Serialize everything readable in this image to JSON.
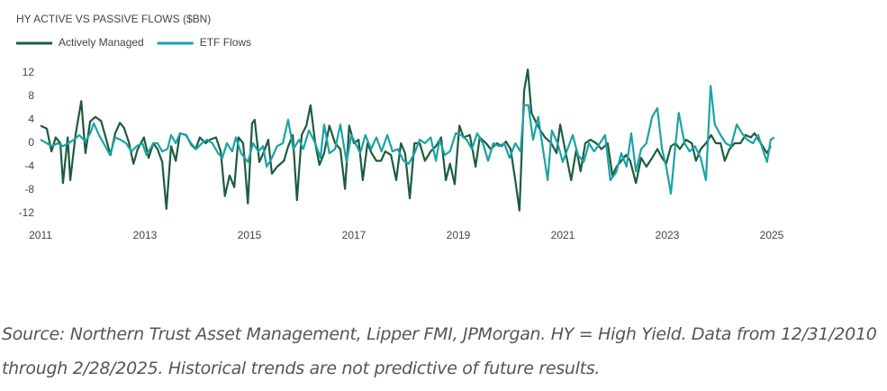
{
  "chart_data": {
    "type": "line",
    "title": "HY ACTIVE VS PASSIVE FLOWS ($BN)",
    "legend": "top-left",
    "grid": false,
    "xlim": [
      2011,
      2025.1
    ],
    "xticks": [
      2011,
      2013,
      2015,
      2017,
      2019,
      2021,
      2023,
      2025
    ],
    "ylim": [
      -13,
      13
    ],
    "yticks": [
      -12,
      -8,
      -4,
      0,
      4,
      8,
      12
    ],
    "series": [
      {
        "name": "Actively Managed",
        "color": "#1d5c3e",
        "x": [
          2011.0,
          2011.12,
          2011.21,
          2011.29,
          2011.38,
          2011.43,
          2011.52,
          2011.57,
          2011.67,
          2011.78,
          2011.86,
          2011.95,
          2012.05,
          2012.16,
          2012.26,
          2012.34,
          2012.43,
          2012.52,
          2012.6,
          2012.69,
          2012.78,
          2012.86,
          2012.98,
          2013.07,
          2013.16,
          2013.24,
          2013.33,
          2013.41,
          2013.5,
          2013.59,
          2013.67,
          2013.79,
          2013.88,
          2013.97,
          2014.05,
          2014.16,
          2014.24,
          2014.36,
          2014.45,
          2014.53,
          2014.62,
          2014.71,
          2014.79,
          2014.88,
          2014.97,
          2015.05,
          2015.1,
          2015.19,
          2015.28,
          2015.36,
          2015.43,
          2015.53,
          2015.66,
          2015.74,
          2015.83,
          2015.91,
          2016.0,
          2016.09,
          2016.17,
          2016.26,
          2016.34,
          2016.43,
          2016.53,
          2016.64,
          2016.74,
          2016.83,
          2016.91,
          2017.0,
          2017.09,
          2017.17,
          2017.26,
          2017.34,
          2017.43,
          2017.52,
          2017.6,
          2017.71,
          2017.81,
          2017.9,
          2017.98,
          2018.07,
          2018.16,
          2018.26,
          2018.36,
          2018.47,
          2018.57,
          2018.67,
          2018.76,
          2018.84,
          2018.93,
          2019.02,
          2019.1,
          2019.22,
          2019.33,
          2019.41,
          2019.53,
          2019.62,
          2019.74,
          2019.83,
          2019.91,
          2020.0,
          2020.09,
          2020.17,
          2020.26,
          2020.33,
          2020.4,
          2020.48,
          2020.57,
          2020.66,
          2020.78,
          2020.88,
          2020.95,
          2021.05,
          2021.16,
          2021.26,
          2021.34,
          2021.43,
          2021.53,
          2021.64,
          2021.74,
          2021.86,
          2021.95,
          2022.03,
          2022.12,
          2022.21,
          2022.29,
          2022.4,
          2022.5,
          2022.6,
          2022.71,
          2022.81,
          2022.9,
          2022.98,
          2023.07,
          2023.16,
          2023.24,
          2023.36,
          2023.47,
          2023.55,
          2023.64,
          2023.74,
          2023.84,
          2023.93,
          2024.02,
          2024.1,
          2024.19,
          2024.29,
          2024.4,
          2024.5,
          2024.6,
          2024.67,
          2024.79,
          2024.91,
          2024.98
        ],
        "values": [
          3,
          2.5,
          -1.4,
          1,
          0,
          -6.8,
          1,
          -6.3,
          1.4,
          7.2,
          -1.7,
          3.7,
          4.5,
          3.8,
          0.6,
          -2,
          1.7,
          3.5,
          2.6,
          0.2,
          -3.5,
          -1,
          1,
          -2.5,
          0,
          -1,
          -3.2,
          -11.2,
          -0.5,
          -3,
          1.7,
          1.4,
          -0.2,
          -1,
          1,
          0,
          0.6,
          1,
          -1.4,
          -9,
          -5.5,
          -7.5,
          1,
          0,
          -10.3,
          3.4,
          4,
          -3.2,
          -1.4,
          0.6,
          -5.2,
          -4,
          -3,
          -0.6,
          1.4,
          -9.7,
          1.4,
          3,
          6.5,
          0,
          -3.7,
          -1.7,
          3,
          0,
          -1,
          -7.8,
          3,
          0,
          0.6,
          -6.3,
          0,
          -1.7,
          -3,
          -3,
          -1.4,
          -2,
          -6.3,
          0,
          -1.7,
          -9.4,
          0,
          0,
          -3,
          -1.4,
          -0.5,
          1,
          -6.3,
          -3.5,
          -7,
          3,
          1,
          1.4,
          -4,
          1,
          0,
          -1,
          0,
          -0.5,
          0.3,
          -1,
          -6.3,
          -11.5,
          9,
          12.6,
          5.2,
          3.7,
          2.2,
          1,
          0,
          -1.7,
          3.2,
          -1.4,
          -6.3,
          -1,
          -4.8,
          0,
          0.6,
          0,
          -1,
          0,
          -5.5,
          -4,
          -3,
          -2,
          -3,
          -6.8,
          -2.5,
          -4,
          -2.5,
          -1,
          -2.5,
          -3.5,
          -0.5,
          0,
          -1,
          0.6,
          0,
          -3,
          -1,
          0,
          1.4,
          0,
          0,
          -3,
          -1,
          0,
          0,
          1.4,
          1,
          1.7,
          0,
          -1.7,
          -0.5
        ]
      },
      {
        "name": "ETF Flows",
        "color": "#1ba3a6",
        "x": [
          2011.0,
          2011.12,
          2011.22,
          2011.33,
          2011.43,
          2011.53,
          2011.64,
          2011.74,
          2011.86,
          2011.95,
          2012.02,
          2012.12,
          2012.24,
          2012.33,
          2012.43,
          2012.53,
          2012.64,
          2012.74,
          2012.84,
          2012.95,
          2013.03,
          2013.16,
          2013.24,
          2013.33,
          2013.43,
          2013.5,
          2013.59,
          2013.67,
          2013.78,
          2013.88,
          2013.98,
          2014.09,
          2014.19,
          2014.29,
          2014.4,
          2014.48,
          2014.57,
          2014.67,
          2014.74,
          2014.84,
          2014.97,
          2015.07,
          2015.17,
          2015.26,
          2015.33,
          2015.43,
          2015.53,
          2015.64,
          2015.74,
          2015.84,
          2015.95,
          2016.03,
          2016.14,
          2016.26,
          2016.36,
          2016.43,
          2016.53,
          2016.64,
          2016.74,
          2016.86,
          2016.95,
          2017.03,
          2017.12,
          2017.22,
          2017.33,
          2017.43,
          2017.53,
          2017.64,
          2017.74,
          2017.84,
          2017.95,
          2018.05,
          2018.16,
          2018.26,
          2018.36,
          2018.47,
          2018.57,
          2018.64,
          2018.74,
          2018.84,
          2018.95,
          2019.05,
          2019.16,
          2019.26,
          2019.36,
          2019.47,
          2019.57,
          2019.67,
          2019.78,
          2019.88,
          2019.98,
          2020.09,
          2020.19,
          2020.26,
          2020.34,
          2020.43,
          2020.53,
          2020.62,
          2020.71,
          2020.79,
          2020.9,
          2021.0,
          2021.09,
          2021.19,
          2021.29,
          2021.4,
          2021.5,
          2021.6,
          2021.71,
          2021.81,
          2021.91,
          2022.02,
          2022.12,
          2022.22,
          2022.31,
          2022.4,
          2022.5,
          2022.6,
          2022.71,
          2022.81,
          2022.9,
          2022.98,
          2023.07,
          2023.16,
          2023.22,
          2023.33,
          2023.43,
          2023.53,
          2023.64,
          2023.74,
          2023.83,
          2023.91,
          2024.02,
          2024.12,
          2024.22,
          2024.33,
          2024.43,
          2024.53,
          2024.64,
          2024.74,
          2024.84,
          2024.91,
          2024.98,
          2025.05
        ],
        "values": [
          0.6,
          0,
          -0.5,
          0,
          -0.5,
          0,
          0.6,
          1.4,
          0.3,
          1.7,
          3.4,
          1.4,
          -0.5,
          -2,
          1,
          0.6,
          0,
          -1.4,
          -0.5,
          0,
          -2,
          0,
          0,
          -1.4,
          -1,
          1.4,
          0,
          1.7,
          1.4,
          0,
          -1,
          0,
          0.6,
          0,
          -1.7,
          -2.5,
          0,
          -1.4,
          1,
          -1.7,
          -3.2,
          0,
          -1.4,
          -0.5,
          -4,
          -2.5,
          -0.5,
          0,
          4,
          -1,
          0.6,
          -1,
          2.2,
          0,
          -2.5,
          3.2,
          -1.7,
          -1,
          3.2,
          -3.2,
          1.4,
          0,
          -1.7,
          1.4,
          -1,
          1,
          -1.4,
          1.4,
          -1.4,
          -1,
          -3,
          -3.5,
          -1.7,
          0.6,
          0,
          1,
          -3,
          0.6,
          -2,
          -1.4,
          1.7,
          1.4,
          0.6,
          -1,
          1.7,
          0,
          -3,
          0,
          -0.5,
          0,
          -2.5,
          0,
          -1.4,
          6.5,
          6.5,
          0.6,
          4.5,
          -1,
          -6.3,
          2.2,
          0,
          -3.2,
          -1,
          1.4,
          -2,
          -3.2,
          0,
          -1.4,
          0,
          1.4,
          -6.3,
          -5,
          -1.7,
          -4,
          1.7,
          -4.8,
          -1,
          0,
          4.5,
          6,
          -1,
          -4,
          -8.6,
          0,
          5.2,
          0,
          -1.4,
          -0.5,
          -2.5,
          -6.3,
          9.8,
          3.2,
          1.4,
          0,
          -0.5,
          3.2,
          1.7,
          0.6,
          0,
          1.4,
          -1.4,
          -3.2,
          0.6,
          1
        ]
      }
    ]
  },
  "footnote": "Source: Northern Trust Asset Management, Lipper FMI, JPMorgan. HY = High Yield. Data from 12/31/2010 through 2/28/2025. Historical trends are not predictive of future results."
}
